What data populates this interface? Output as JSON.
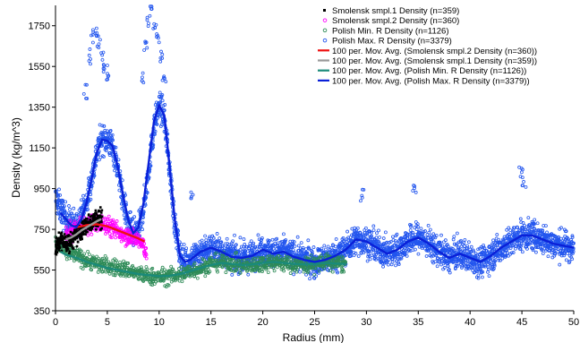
{
  "chart_data": {
    "type": "scatter",
    "title": "",
    "xlabel": "Radius (mm)",
    "ylabel": "Density (kg/m^3)",
    "xlim": [
      0,
      50
    ],
    "ylim": [
      350,
      1850
    ],
    "x_ticks": [
      0,
      5,
      10,
      15,
      20,
      25,
      30,
      35,
      40,
      45,
      50
    ],
    "y_ticks": [
      350,
      550,
      750,
      950,
      1150,
      1350,
      1550,
      1750
    ],
    "grid": false,
    "legend_position": "top-right",
    "scatter_series": [
      {
        "name": "Smolensk smpl.1 Density (n=359)",
        "color": "#000000",
        "marker": "filled-square",
        "n": 359,
        "x_range": [
          0,
          4.5
        ],
        "trend": [
          [
            0,
            650
          ],
          [
            0.5,
            700
          ],
          [
            1,
            680
          ],
          [
            1.5,
            690
          ],
          [
            2,
            720
          ],
          [
            2.5,
            740
          ],
          [
            3,
            770
          ],
          [
            3.5,
            790
          ],
          [
            4,
            800
          ],
          [
            4.5,
            810
          ]
        ],
        "noise": 45
      },
      {
        "name": "Smolensk smpl.2 Density (n=360)",
        "color": "#ff00ff",
        "marker": "open-circle",
        "n": 360,
        "x_range": [
          1,
          8.8
        ],
        "trend": [
          [
            1,
            720
          ],
          [
            2,
            750
          ],
          [
            3,
            770
          ],
          [
            4,
            780
          ],
          [
            5,
            770
          ],
          [
            6,
            740
          ],
          [
            7,
            720
          ],
          [
            8,
            700
          ],
          [
            8.8,
            640
          ]
        ],
        "noise": 45
      },
      {
        "name": "Polish Min. R Density (n=1126)",
        "color": "#2e8b57",
        "marker": "open-circle",
        "n": 1126,
        "x_range": [
          0,
          28
        ],
        "trend": [
          [
            0,
            680
          ],
          [
            1,
            640
          ],
          [
            2,
            620
          ],
          [
            3,
            600
          ],
          [
            4,
            580
          ],
          [
            5,
            570
          ],
          [
            6,
            560
          ],
          [
            7,
            550
          ],
          [
            8,
            530
          ],
          [
            9,
            520
          ],
          [
            10,
            515
          ],
          [
            11,
            520
          ],
          [
            12,
            525
          ],
          [
            13,
            545
          ],
          [
            14,
            560
          ],
          [
            15,
            580
          ],
          [
            16,
            590
          ],
          [
            17,
            585
          ],
          [
            18,
            570
          ],
          [
            19,
            575
          ],
          [
            20,
            585
          ],
          [
            21,
            590
          ],
          [
            22,
            585
          ],
          [
            23,
            580
          ],
          [
            24,
            575
          ],
          [
            25,
            580
          ],
          [
            26,
            590
          ],
          [
            27,
            585
          ],
          [
            28,
            580
          ]
        ],
        "noise": 40
      },
      {
        "name": "Polish Max. R Density (n=3379)",
        "color": "#2255ee",
        "marker": "open-circle",
        "n": 3379,
        "x_range": [
          0,
          50
        ],
        "trend": [
          [
            0,
            900
          ],
          [
            0.5,
            850
          ],
          [
            1,
            800
          ],
          [
            2,
            760
          ],
          [
            3,
            880
          ],
          [
            3.5,
            1000
          ],
          [
            4,
            1130
          ],
          [
            4.5,
            1200
          ],
          [
            5,
            1190
          ],
          [
            5.5,
            1160
          ],
          [
            6,
            1050
          ],
          [
            6.5,
            900
          ],
          [
            7,
            780
          ],
          [
            7.5,
            720
          ],
          [
            8,
            740
          ],
          [
            8.5,
            850
          ],
          [
            9,
            1050
          ],
          [
            9.5,
            1250
          ],
          [
            10,
            1360
          ],
          [
            10.5,
            1300
          ],
          [
            11,
            1050
          ],
          [
            11.5,
            780
          ],
          [
            12,
            620
          ],
          [
            12.5,
            590
          ],
          [
            13,
            600
          ],
          [
            14,
            640
          ],
          [
            15,
            660
          ],
          [
            16,
            640
          ],
          [
            17,
            620
          ],
          [
            18,
            610
          ],
          [
            19,
            620
          ],
          [
            20,
            650
          ],
          [
            21,
            630
          ],
          [
            22,
            640
          ],
          [
            23,
            620
          ],
          [
            24,
            600
          ],
          [
            25,
            590
          ],
          [
            26,
            600
          ],
          [
            27,
            620
          ],
          [
            28,
            650
          ],
          [
            29,
            700
          ],
          [
            30,
            690
          ],
          [
            31,
            660
          ],
          [
            32,
            630
          ],
          [
            33,
            650
          ],
          [
            34,
            690
          ],
          [
            35,
            710
          ],
          [
            36,
            680
          ],
          [
            37,
            640
          ],
          [
            38,
            610
          ],
          [
            39,
            630
          ],
          [
            40,
            610
          ],
          [
            41,
            590
          ],
          [
            42,
            620
          ],
          [
            43,
            660
          ],
          [
            44,
            690
          ],
          [
            45,
            720
          ],
          [
            46,
            720
          ],
          [
            47,
            700
          ],
          [
            48,
            680
          ],
          [
            49,
            670
          ],
          [
            50,
            660
          ]
        ],
        "noise": 70,
        "outliers": [
          [
            3.6,
            1700
          ],
          [
            3.9,
            1720
          ],
          [
            4.2,
            1680
          ],
          [
            4.6,
            1620
          ],
          [
            4.8,
            1550
          ],
          [
            3.3,
            1600
          ],
          [
            5.1,
            1480
          ],
          [
            2.9,
            1420
          ],
          [
            9.0,
            1780
          ],
          [
            9.3,
            1860
          ],
          [
            9.6,
            1750
          ],
          [
            9.9,
            1700
          ],
          [
            8.7,
            1640
          ],
          [
            10.2,
            1600
          ],
          [
            8.4,
            1500
          ],
          [
            10.5,
            1480
          ],
          [
            44.9,
            1040
          ],
          [
            45.2,
            980
          ],
          [
            34.6,
            960
          ],
          [
            29.6,
            920
          ],
          [
            13.1,
            920
          ]
        ]
      }
    ],
    "moving_averages": [
      {
        "name": "100 per. Mov. Avg. (Smolensk smpl.2 Density (n=360))",
        "color": "#ee1111",
        "points": [
          [
            2,
            760
          ],
          [
            3,
            770
          ],
          [
            4,
            775
          ],
          [
            5,
            765
          ],
          [
            6,
            745
          ],
          [
            7,
            725
          ],
          [
            8,
            705
          ],
          [
            8.6,
            690
          ]
        ]
      },
      {
        "name": "100 per. Mov. Avg. (Smolensk smpl.1 Density (n=359))",
        "color": "#999999",
        "points": [
          [
            1,
            700
          ],
          [
            1.5,
            710
          ],
          [
            2,
            725
          ],
          [
            2.5,
            745
          ],
          [
            3,
            760
          ],
          [
            3.5,
            775
          ],
          [
            4,
            790
          ],
          [
            4.4,
            800
          ]
        ]
      },
      {
        "name": "100 per. Mov. Avg. (Polish Min. R Density (n=1126))",
        "color": "#1a8a7a",
        "points": [
          [
            0.5,
            640
          ],
          [
            1,
            625
          ],
          [
            2,
            610
          ],
          [
            3,
            590
          ],
          [
            4,
            575
          ],
          [
            5,
            560
          ],
          [
            6,
            550
          ],
          [
            7,
            540
          ],
          [
            8,
            530
          ],
          [
            9,
            525
          ],
          [
            10,
            520
          ],
          [
            11,
            522
          ],
          [
            12,
            530
          ],
          [
            13,
            545
          ],
          [
            14,
            560
          ],
          [
            15,
            575
          ],
          [
            16,
            585
          ],
          [
            17,
            580
          ],
          [
            18,
            575
          ],
          [
            19,
            578
          ],
          [
            20,
            585
          ],
          [
            21,
            590
          ],
          [
            22,
            585
          ],
          [
            23,
            580
          ],
          [
            24,
            578
          ],
          [
            25,
            580
          ],
          [
            26,
            585
          ],
          [
            27,
            582
          ],
          [
            28,
            580
          ]
        ]
      },
      {
        "name": "100 per. Mov. Avg. (Polish Max. R Density (n=3379))",
        "color": "#0a20d8",
        "points": [
          [
            0.5,
            830
          ],
          [
            1,
            800
          ],
          [
            1.5,
            770
          ],
          [
            2,
            760
          ],
          [
            2.5,
            800
          ],
          [
            3,
            880
          ],
          [
            3.5,
            1000
          ],
          [
            4,
            1130
          ],
          [
            4.5,
            1190
          ],
          [
            5,
            1185
          ],
          [
            5.5,
            1160
          ],
          [
            6,
            1060
          ],
          [
            6.5,
            920
          ],
          [
            7,
            800
          ],
          [
            7.5,
            730
          ],
          [
            8,
            760
          ],
          [
            8.5,
            880
          ],
          [
            9,
            1080
          ],
          [
            9.5,
            1280
          ],
          [
            10,
            1360
          ],
          [
            10.5,
            1310
          ],
          [
            11,
            1060
          ],
          [
            11.5,
            800
          ],
          [
            12,
            620
          ],
          [
            12.5,
            590
          ],
          [
            13,
            600
          ],
          [
            14,
            640
          ],
          [
            15,
            660
          ],
          [
            16,
            640
          ],
          [
            17,
            615
          ],
          [
            18,
            610
          ],
          [
            19,
            620
          ],
          [
            20,
            650
          ],
          [
            21,
            630
          ],
          [
            22,
            640
          ],
          [
            23,
            615
          ],
          [
            24,
            600
          ],
          [
            25,
            590
          ],
          [
            26,
            600
          ],
          [
            27,
            620
          ],
          [
            28,
            650
          ],
          [
            29,
            700
          ],
          [
            30,
            690
          ],
          [
            31,
            660
          ],
          [
            32,
            630
          ],
          [
            33,
            650
          ],
          [
            34,
            690
          ],
          [
            35,
            710
          ],
          [
            36,
            680
          ],
          [
            37,
            640
          ],
          [
            38,
            610
          ],
          [
            39,
            630
          ],
          [
            40,
            610
          ],
          [
            41,
            590
          ],
          [
            42,
            620
          ],
          [
            43,
            660
          ],
          [
            44,
            690
          ],
          [
            45,
            720
          ],
          [
            46,
            720
          ],
          [
            47,
            700
          ],
          [
            48,
            680
          ],
          [
            49,
            670
          ],
          [
            50,
            660
          ]
        ]
      }
    ]
  }
}
